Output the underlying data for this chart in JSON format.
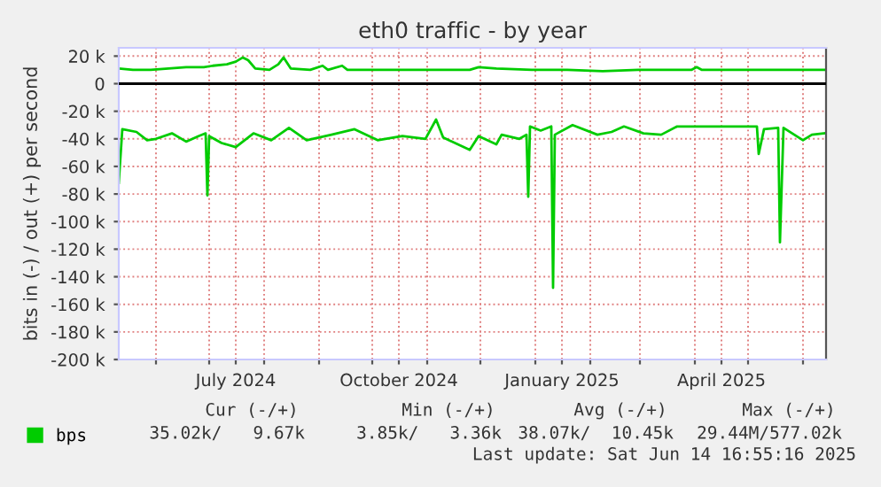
{
  "chart_data": {
    "type": "line",
    "title": "eth0 traffic - by year",
    "ylabel": "bits in (-) / out (+) per second",
    "xlim": [
      "2024-05-11",
      "2025-06-14"
    ],
    "xticks": [
      {
        "value": "2024-06-01",
        "label": null
      },
      {
        "value": "2024-07-01",
        "label": null
      },
      {
        "value": "2024-07-16",
        "label": "July 2024"
      },
      {
        "value": "2024-08-01",
        "label": null
      },
      {
        "value": "2024-09-01",
        "label": null
      },
      {
        "value": "2024-10-01",
        "label": null
      },
      {
        "value": "2024-10-16",
        "label": "October 2024"
      },
      {
        "value": "2024-11-01",
        "label": null
      },
      {
        "value": "2024-12-01",
        "label": null
      },
      {
        "value": "2025-01-01",
        "label": null
      },
      {
        "value": "2025-01-16",
        "label": "January 2025"
      },
      {
        "value": "2025-02-01",
        "label": null
      },
      {
        "value": "2025-03-01",
        "label": null
      },
      {
        "value": "2025-04-01",
        "label": null
      },
      {
        "value": "2025-04-16",
        "label": "April 2025"
      },
      {
        "value": "2025-05-01",
        "label": null
      },
      {
        "value": "2025-06-01",
        "label": null
      }
    ],
    "ylim": [
      -200000,
      26000
    ],
    "yticks": [
      {
        "value": 20000,
        "label": "20 k"
      },
      0,
      {
        "value": -20000,
        "label": "-20 k"
      },
      {
        "value": -40000,
        "label": "-40 k"
      },
      {
        "value": -60000,
        "label": "-60 k"
      },
      {
        "value": -80000,
        "label": "-80 k"
      },
      {
        "value": -100000,
        "label": "-100 k"
      },
      {
        "value": -120000,
        "label": "-120 k"
      },
      {
        "value": -140000,
        "label": "-140 k"
      },
      {
        "value": -160000,
        "label": "-160 k"
      },
      {
        "value": -180000,
        "label": "-180 k"
      },
      {
        "value": -200000,
        "label": "-200 k"
      }
    ],
    "grid": true,
    "legend": "bottom",
    "marker": "none",
    "line_style": "solid",
    "ref_lines": [
      {
        "axis": "y",
        "value": 0,
        "color": "#000000"
      }
    ],
    "series": [
      {
        "name": "bps",
        "color": "#00cc00",
        "x": [
          "2024-05-11",
          "2024-05-19",
          "2024-05-29",
          "2024-06-08",
          "2024-06-18",
          "2024-06-28",
          "2024-07-03",
          "2024-07-11",
          "2024-07-16",
          "2024-07-20",
          "2024-07-23",
          "2024-07-27",
          "2024-08-04",
          "2024-08-09",
          "2024-08-12",
          "2024-08-16",
          "2024-08-27",
          "2024-09-03",
          "2024-09-06",
          "2024-09-14",
          "2024-09-17",
          "2024-10-21",
          "2024-11-25",
          "2024-11-30",
          "2024-12-10",
          "2024-12-30",
          "2025-01-19",
          "2025-02-08",
          "2025-02-28",
          "2025-03-30",
          "2025-04-02",
          "2025-04-05",
          "2025-05-09",
          "2025-06-03",
          "2025-06-13"
        ],
        "values": [
          11000,
          10000,
          10000,
          11000,
          12000,
          12000,
          13000,
          14000,
          16000,
          19000,
          17000,
          11000,
          10000,
          14000,
          19000,
          11000,
          10000,
          13000,
          10000,
          13000,
          10000,
          10000,
          10000,
          12000,
          11000,
          10000,
          10000,
          9000,
          10000,
          10000,
          12000,
          10000,
          10000,
          10000,
          10000
        ]
      },
      {
        "color": "#00cc00",
        "x": [
          "2024-05-11",
          "2024-05-13",
          "2024-05-21",
          "2024-05-27",
          "2024-06-01",
          "2024-06-10",
          "2024-06-18",
          "2024-06-25",
          "2024-06-29",
          "2024-06-30",
          "2024-07-01",
          "2024-07-08",
          "2024-07-16",
          "2024-07-26",
          "2024-08-05",
          "2024-08-15",
          "2024-08-25",
          "2024-09-08",
          "2024-09-21",
          "2024-10-04",
          "2024-10-18",
          "2024-10-31",
          "2024-11-06",
          "2024-11-10",
          "2024-11-25",
          "2024-11-30",
          "2024-12-10",
          "2024-12-13",
          "2024-12-23",
          "2024-12-27",
          "2024-12-28",
          "2024-12-29",
          "2025-01-04",
          "2025-01-10",
          "2025-01-11",
          "2025-01-12",
          "2025-01-22",
          "2025-02-05",
          "2025-02-13",
          "2025-02-20",
          "2025-03-03",
          "2025-03-13",
          "2025-03-22",
          "2025-04-09",
          "2025-05-06",
          "2025-05-07",
          "2025-05-10",
          "2025-05-18",
          "2025-05-19",
          "2025-05-21",
          "2025-06-01",
          "2025-06-06",
          "2025-06-13"
        ],
        "values": [
          -72000,
          -33000,
          -35000,
          -41000,
          -40000,
          -36000,
          -42000,
          -38000,
          -36000,
          -81000,
          -38000,
          -43000,
          -46000,
          -36000,
          -41000,
          -32000,
          -41000,
          -37000,
          -33000,
          -41000,
          -38000,
          -40000,
          -26000,
          -39000,
          -48000,
          -38000,
          -44000,
          -37000,
          -40000,
          -37000,
          -82000,
          -31000,
          -34000,
          -31000,
          -148000,
          -37000,
          -30000,
          -37000,
          -35000,
          -31000,
          -36000,
          -37000,
          -31000,
          -31000,
          -31000,
          -51000,
          -33000,
          -32000,
          -115000,
          -32000,
          -41000,
          -37000,
          -36000
        ]
      }
    ],
    "annotations": [
      "Cur (-/+)",
      "Min (-/+)",
      "Avg (-/+)",
      "Max (-/+)",
      "35.02k/   9.67k",
      "3.85k/   3.36k",
      "38.07k/  10.45k",
      "29.44M/577.02k",
      "Last update: Sat Jun 14 16:55:16 2025"
    ]
  }
}
